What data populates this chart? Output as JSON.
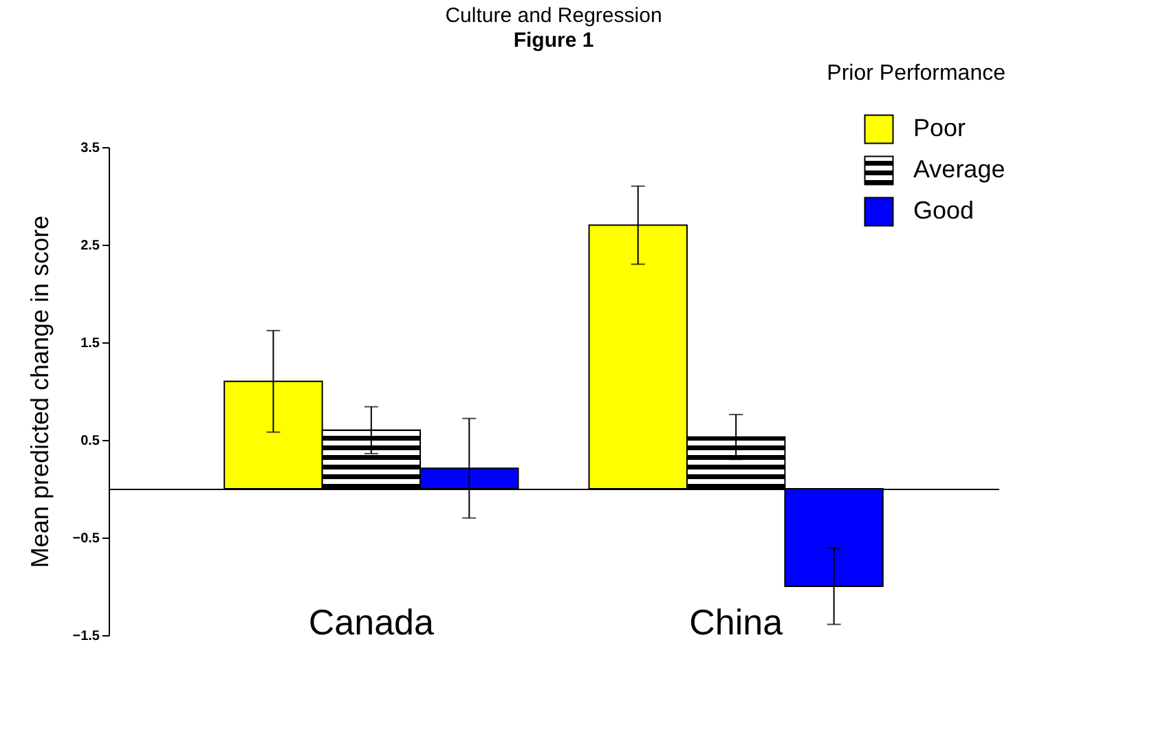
{
  "chart_data": {
    "type": "bar",
    "title": "Culture and Regression",
    "subtitle": "Figure 1",
    "ylabel": "Mean predicted change in score",
    "legend_title": "Prior Performance",
    "categories": [
      "Canada",
      "China"
    ],
    "series": [
      {
        "name": "Poor",
        "color": "#ffff00",
        "values": [
          1.1,
          2.7
        ],
        "errors": [
          0.52,
          0.4
        ]
      },
      {
        "name": "Average",
        "color": "#000000",
        "values": [
          0.6,
          0.53
        ],
        "errors": [
          0.24,
          0.23
        ]
      },
      {
        "name": "Good",
        "color": "#0000ff",
        "values": [
          0.21,
          -1.0
        ],
        "errors": [
          0.51,
          0.39
        ]
      }
    ],
    "ylim": [
      -1.5,
      3.5
    ],
    "yticks": [
      -1.5,
      -0.5,
      0.5,
      1.5,
      2.5,
      3.5
    ],
    "grid": false,
    "legend": "top right"
  }
}
